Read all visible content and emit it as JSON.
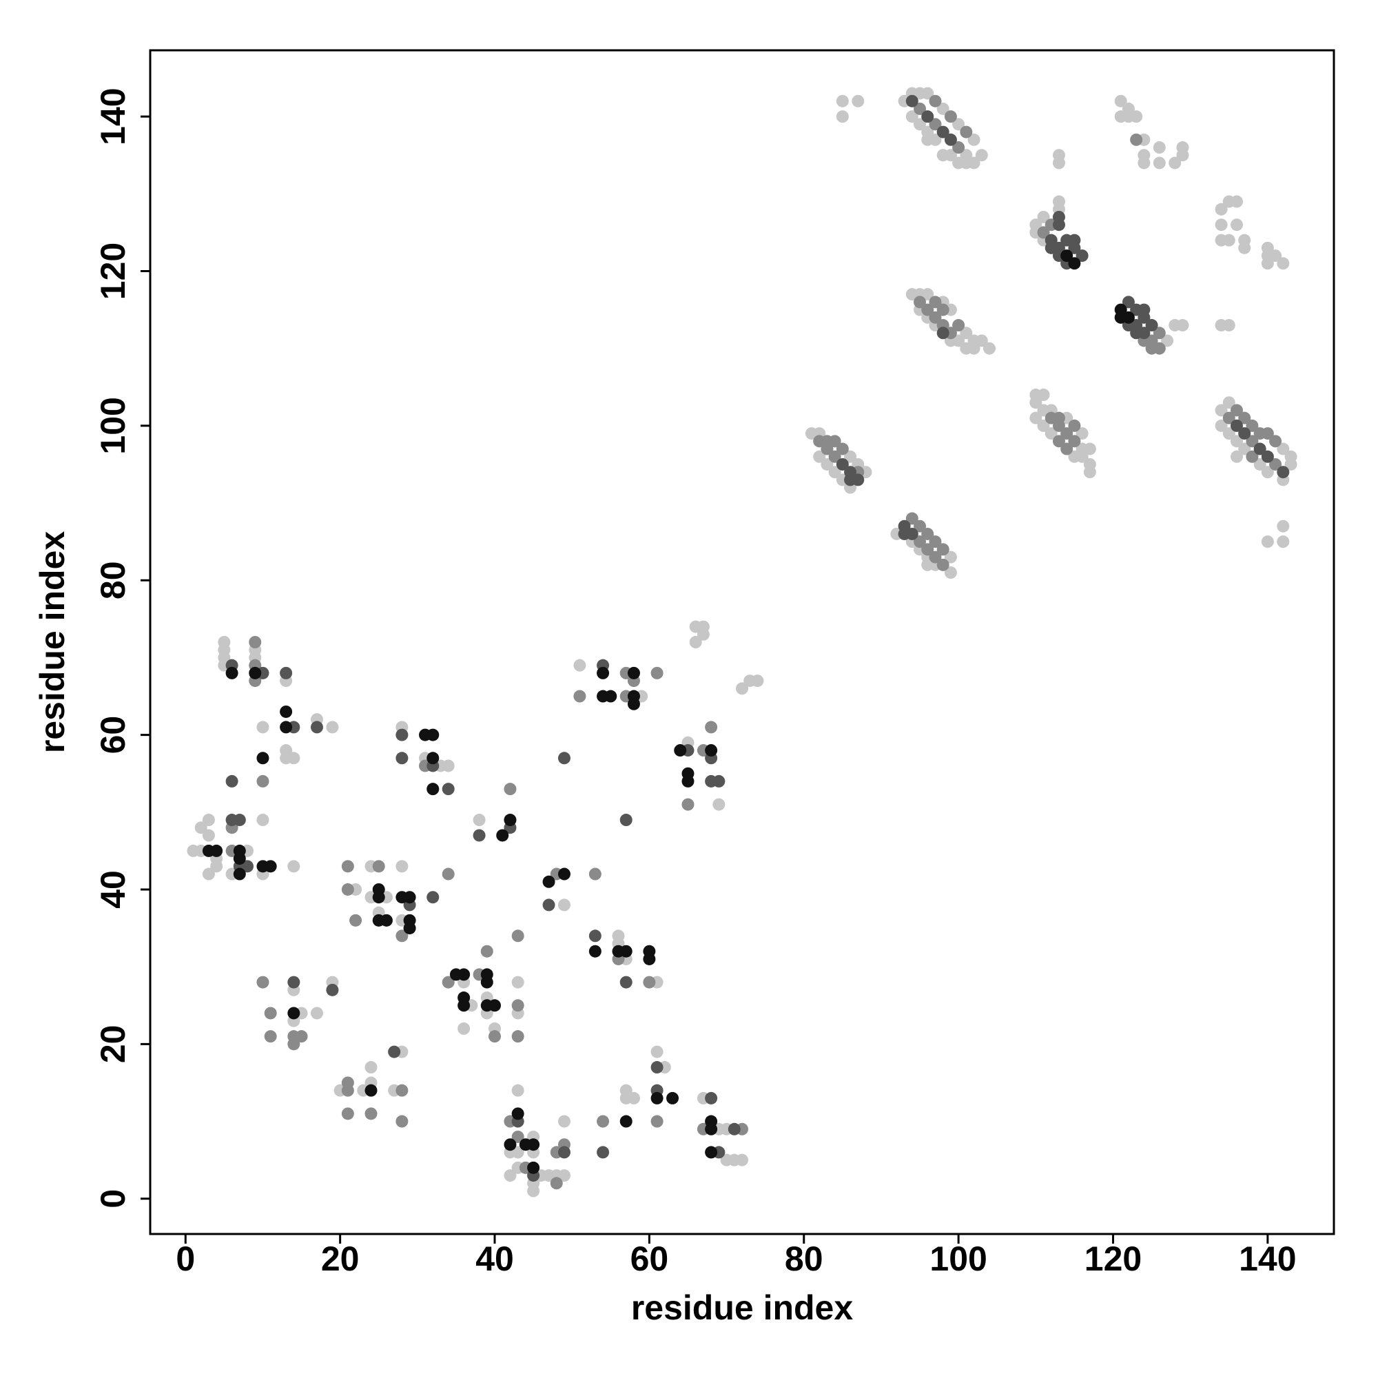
{
  "chart_data": {
    "type": "scatter",
    "x_label": "residue index",
    "y_label": "residue index",
    "xlim": [
      -4.57,
      148.57
    ],
    "ylim": [
      -4.57,
      148.57
    ],
    "xticks": [
      0,
      20,
      40,
      60,
      80,
      100,
      120,
      140
    ],
    "yticks": [
      0,
      20,
      40,
      60,
      80,
      100,
      120,
      140
    ],
    "grid": false,
    "series": [
      {
        "color": "#c6c6c6",
        "x": [
          1,
          2,
          2,
          3,
          3,
          4,
          4,
          3,
          8,
          10,
          6,
          10,
          10,
          5,
          5,
          5,
          5,
          9,
          9,
          13,
          13,
          13,
          14,
          17,
          19,
          14,
          14,
          14,
          15,
          17,
          19,
          22,
          24,
          24,
          25,
          26,
          28,
          28,
          28,
          31,
          33,
          34,
          20,
          23,
          24,
          24,
          28,
          27,
          36,
          36,
          37,
          39,
          39,
          40,
          43,
          43,
          38,
          49,
          43,
          43,
          42,
          42,
          43,
          45,
          45,
          45,
          45,
          46,
          47,
          49,
          48,
          49,
          51,
          59,
          56,
          56,
          57,
          61,
          57,
          57,
          58,
          61,
          62,
          65,
          69,
          66,
          67,
          67,
          66,
          73,
          74,
          72,
          67,
          69,
          70,
          70,
          71,
          72,
          81,
          82,
          86,
          87,
          88,
          82,
          83,
          84,
          85,
          86,
          99,
          94,
          95,
          96,
          96,
          97,
          99,
          92,
          100,
          101,
          94,
          95,
          96,
          98,
          99,
          101,
          102,
          103,
          104,
          102,
          95,
          96,
          97,
          99,
          101,
          95,
          96,
          98,
          100,
          102,
          103,
          93,
          94,
          95,
          96,
          97,
          98,
          99,
          100,
          101,
          102,
          94,
          96,
          110,
          111,
          110,
          111,
          127,
          110,
          111,
          116,
          110,
          111,
          112,
          114,
          116,
          117,
          110,
          111,
          112,
          115,
          116,
          117,
          117,
          134,
          135,
          142,
          143,
          134,
          135,
          136,
          137,
          139,
          140,
          142,
          143,
          85,
          85,
          87,
          121,
          122,
          121,
          122,
          123,
          124,
          124,
          124,
          126,
          126,
          128,
          129,
          129,
          113,
          113,
          113,
          113,
          134,
          135,
          136,
          134,
          136,
          134,
          135,
          137,
          137,
          140,
          140,
          141,
          140,
          142,
          134,
          135,
          128,
          129,
          140,
          142,
          142,
          136
        ],
        "values": [
          45,
          45,
          48,
          49,
          47,
          44,
          43,
          42,
          45,
          42,
          42,
          61,
          49,
          72,
          71,
          70,
          69,
          71,
          70,
          67,
          58,
          57,
          57,
          62,
          61,
          43,
          27,
          23,
          24,
          24,
          28,
          40,
          43,
          39,
          37,
          39,
          43,
          36,
          61,
          57,
          56,
          56,
          14,
          14,
          17,
          15,
          19,
          14,
          28,
          22,
          25,
          26,
          24,
          22,
          28,
          24,
          49,
          38,
          14,
          6,
          6,
          3,
          4,
          2,
          1,
          6,
          8,
          3,
          3,
          10,
          3,
          3,
          69,
          65,
          34,
          33,
          31,
          28,
          14,
          13,
          13,
          19,
          17,
          59,
          51,
          74,
          74,
          73,
          72,
          67,
          67,
          66,
          13,
          9,
          9,
          5,
          5,
          5,
          99,
          99,
          96,
          95,
          94,
          96,
          95,
          94,
          93,
          92,
          83,
          85,
          84,
          83,
          82,
          82,
          81,
          86,
          111,
          110,
          117,
          117,
          117,
          116,
          115,
          112,
          111,
          111,
          110,
          110,
          115,
          114,
          113,
          111,
          135,
          143,
          143,
          141,
          139,
          137,
          135,
          142,
          140,
          139,
          138,
          137,
          135,
          135,
          134,
          134,
          134,
          143,
          137,
          126,
          127,
          125,
          124,
          111,
          103,
          102,
          97,
          104,
          104,
          102,
          101,
          99,
          97,
          101,
          100,
          99,
          96,
          96,
          95,
          94,
          102,
          103,
          97,
          96,
          100,
          99,
          98,
          97,
          95,
          94,
          93,
          95,
          142,
          140,
          142,
          142,
          141,
          140,
          140,
          140,
          137,
          135,
          134,
          136,
          134,
          134,
          136,
          135,
          135,
          134,
          129,
          128,
          128,
          129,
          129,
          126,
          126,
          124,
          124,
          124,
          123,
          123,
          122,
          122,
          121,
          121,
          113,
          113,
          113,
          113,
          85,
          85,
          87,
          96
        ]
      },
      {
        "color": "#8a8a8a",
        "x": [
          6,
          6,
          10,
          9,
          9,
          9,
          10,
          11,
          11,
          14,
          14,
          15,
          21,
          21,
          22,
          25,
          28,
          34,
          31,
          21,
          21,
          21,
          24,
          28,
          28,
          34,
          38,
          39,
          40,
          43,
          43,
          43,
          42,
          48,
          42,
          43,
          44,
          48,
          49,
          48,
          51,
          57,
          57,
          58,
          61,
          53,
          56,
          60,
          54,
          61,
          65,
          67,
          68,
          67,
          72,
          82,
          83,
          84,
          83,
          84,
          85,
          87,
          95,
          96,
          97,
          98,
          94,
          95,
          96,
          97,
          98,
          95,
          96,
          97,
          98,
          99,
          97,
          100,
          98,
          95,
          97,
          100,
          97,
          99,
          101,
          111,
          112,
          125,
          126,
          126,
          124,
          125,
          112,
          113,
          114,
          115,
          113,
          115,
          113,
          114,
          135,
          138,
          141,
          136,
          137,
          138,
          139,
          140,
          141,
          138,
          123
        ],
        "values": [
          48,
          45,
          54,
          72,
          69,
          67,
          28,
          24,
          21,
          21,
          20,
          21,
          43,
          40,
          36,
          43,
          34,
          42,
          56,
          15,
          14,
          11,
          11,
          14,
          10,
          28,
          29,
          32,
          21,
          34,
          25,
          21,
          53,
          42,
          10,
          8,
          4,
          6,
          7,
          2,
          65,
          68,
          65,
          67,
          68,
          42,
          31,
          28,
          10,
          10,
          51,
          58,
          61,
          9,
          9,
          98,
          97,
          96,
          98,
          98,
          97,
          94,
          85,
          84,
          83,
          82,
          88,
          87,
          86,
          85,
          84,
          116,
          115,
          114,
          113,
          112,
          116,
          113,
          115,
          141,
          139,
          136,
          142,
          140,
          138,
          125,
          126,
          111,
          110,
          112,
          111,
          110,
          101,
          100,
          99,
          98,
          101,
          100,
          98,
          97,
          101,
          98,
          95,
          102,
          101,
          100,
          99,
          99,
          98,
          96,
          137
        ]
      },
      {
        "color": "#555555",
        "x": [
          6,
          7,
          7,
          8,
          6,
          6,
          10,
          13,
          14,
          17,
          14,
          19,
          29,
          32,
          28,
          28,
          32,
          34,
          27,
          38,
          42,
          47,
          49,
          43,
          45,
          49,
          54,
          53,
          54,
          57,
          57,
          61,
          61,
          65,
          68,
          68,
          69,
          68,
          71,
          69,
          85,
          86,
          87,
          86,
          93,
          94,
          93,
          98,
          94,
          96,
          98,
          99,
          112,
          113,
          113,
          114,
          115,
          116,
          112,
          113,
          114,
          115,
          113,
          123,
          124,
          122,
          123,
          124,
          124,
          125,
          122,
          123,
          136,
          137,
          139,
          140,
          142
        ],
        "values": [
          49,
          49,
          43,
          43,
          54,
          69,
          68,
          68,
          61,
          61,
          28,
          27,
          38,
          39,
          60,
          57,
          56,
          53,
          19,
          47,
          48,
          38,
          57,
          10,
          3,
          6,
          69,
          34,
          6,
          28,
          49,
          17,
          14,
          58,
          57,
          54,
          54,
          13,
          9,
          6,
          95,
          94,
          93,
          93,
          87,
          86,
          86,
          112,
          142,
          140,
          138,
          137,
          124,
          123,
          126,
          124,
          124,
          122,
          123,
          122,
          121,
          123,
          127,
          113,
          112,
          116,
          115,
          115,
          114,
          113,
          113,
          112,
          100,
          99,
          97,
          96,
          94
        ]
      },
      {
        "color": "#111111",
        "x": [
          3,
          4,
          7,
          7,
          7,
          10,
          11,
          10,
          6,
          9,
          13,
          13,
          14,
          25,
          25,
          25,
          26,
          28,
          29,
          29,
          29,
          31,
          32,
          32,
          32,
          24,
          35,
          36,
          36,
          36,
          39,
          39,
          39,
          40,
          41,
          42,
          47,
          49,
          43,
          42,
          44,
          45,
          45,
          54,
          54,
          55,
          58,
          58,
          58,
          53,
          56,
          57,
          60,
          60,
          57,
          61,
          63,
          64,
          65,
          65,
          68,
          68,
          68,
          68,
          114,
          115,
          121,
          122,
          121
        ],
        "values": [
          45,
          45,
          45,
          44,
          42,
          43,
          43,
          57,
          68,
          68,
          63,
          61,
          24,
          40,
          39,
          36,
          36,
          39,
          39,
          36,
          35,
          60,
          60,
          57,
          53,
          14,
          29,
          29,
          26,
          25,
          29,
          28,
          25,
          25,
          47,
          49,
          41,
          42,
          11,
          7,
          7,
          7,
          4,
          68,
          65,
          65,
          68,
          65,
          64,
          32,
          32,
          32,
          32,
          31,
          10,
          13,
          13,
          58,
          55,
          54,
          58,
          10,
          9,
          6,
          122,
          121,
          115,
          114,
          114
        ]
      }
    ]
  }
}
